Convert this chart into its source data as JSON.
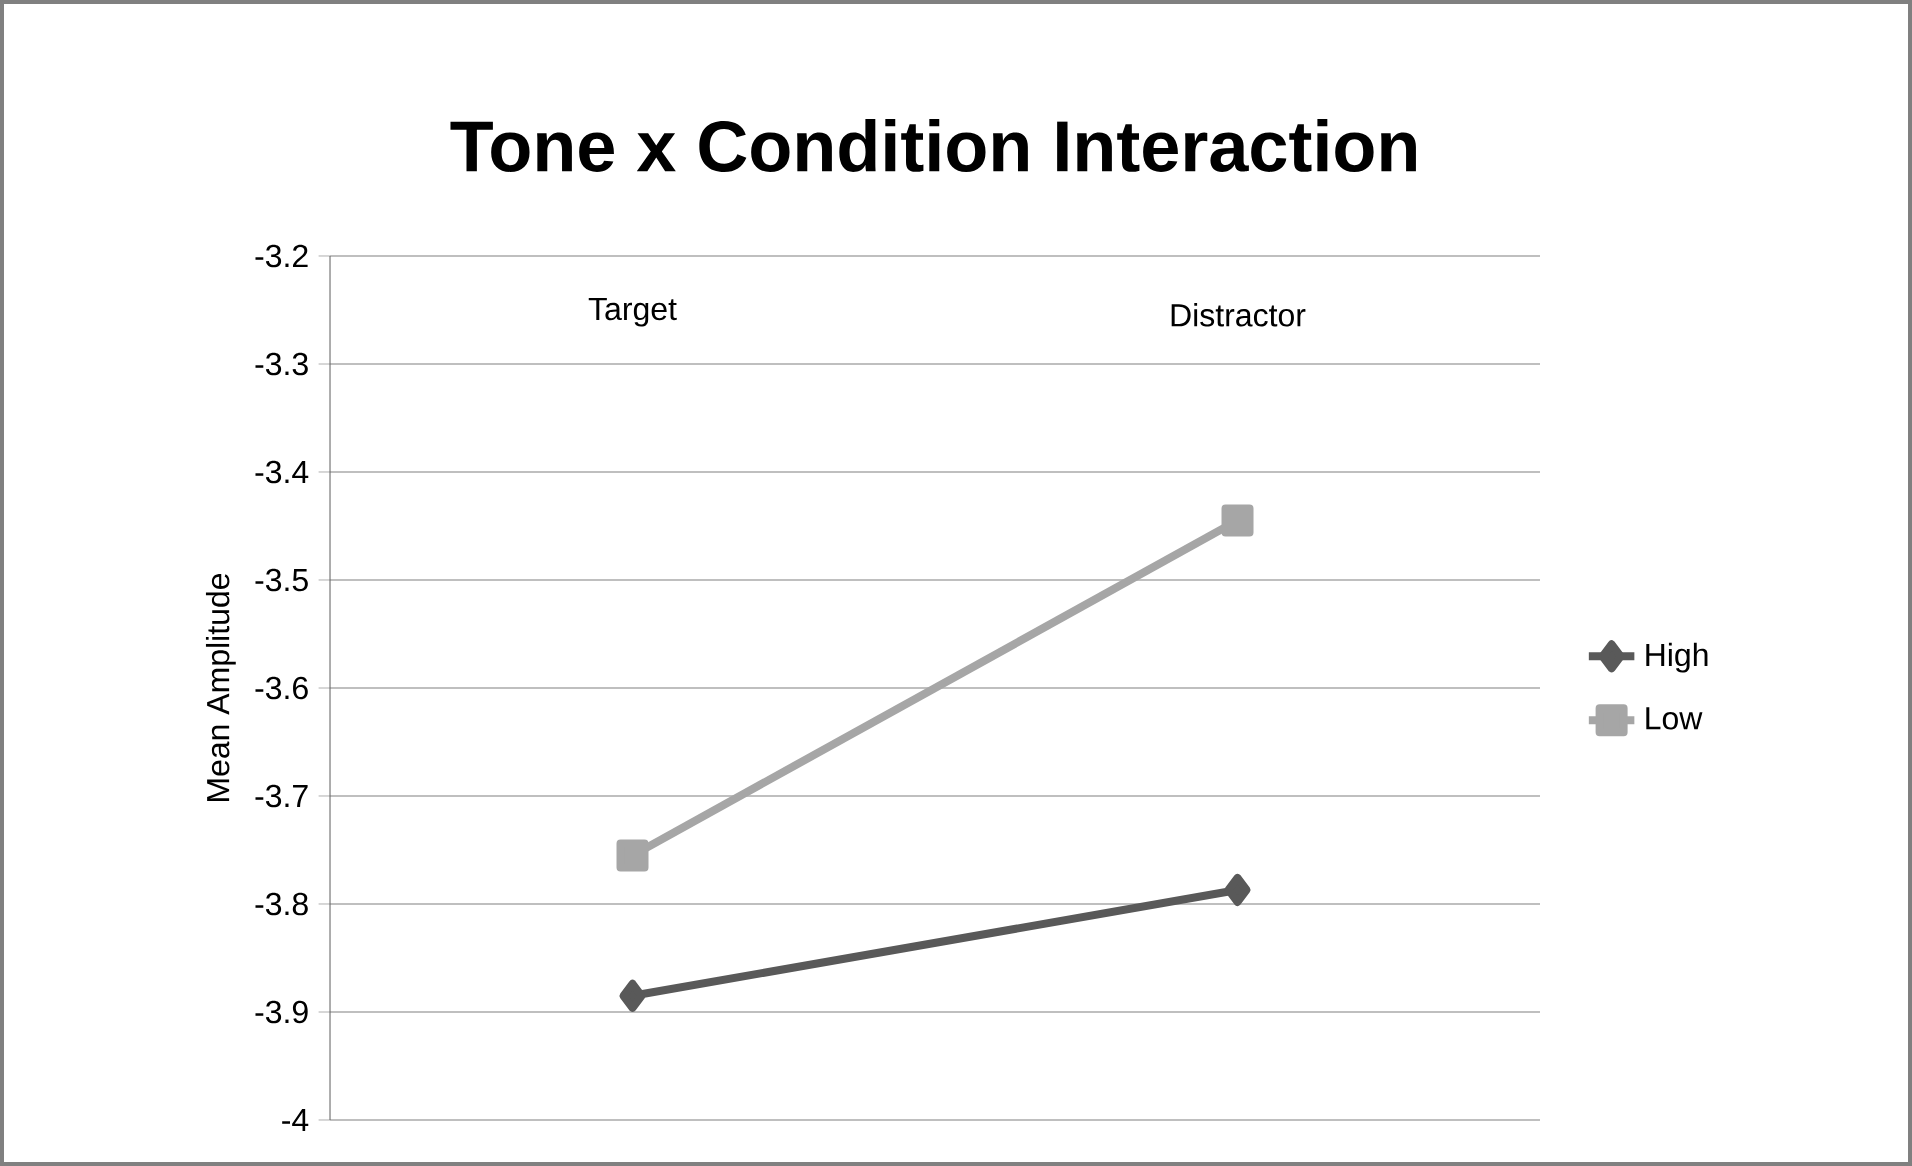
{
  "chart_data": {
    "type": "line",
    "title": "Tone x Condition Interaction",
    "ylabel": "Mean Amplitude",
    "categories": [
      "Target",
      "Distractor"
    ],
    "series": [
      {
        "name": "High",
        "color": "#595959",
        "marker": "diamond",
        "values": [
          -3.885,
          -3.787
        ]
      },
      {
        "name": "Low",
        "color": "#a6a6a6",
        "marker": "square",
        "values": [
          -3.755,
          -3.445
        ]
      }
    ],
    "ylim": [
      -4,
      -3.2
    ],
    "yticks": [
      -4,
      -3.9,
      -3.8,
      -3.7,
      -3.6,
      -3.5,
      -3.4,
      -3.3,
      -3.2
    ],
    "grid": "y",
    "legend": "right"
  }
}
